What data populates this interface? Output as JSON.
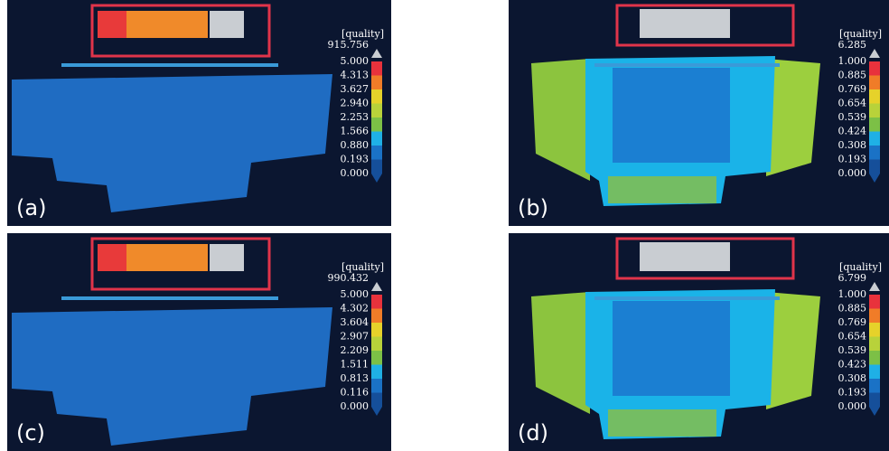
{
  "panels": [
    {
      "label": "(a)",
      "scale_title": "[quality]",
      "max": "915.756",
      "ticks": [
        "5.000",
        "4.313",
        "3.627",
        "2.940",
        "2.253",
        "1.566",
        "0.880",
        "0.193",
        "0.000"
      ]
    },
    {
      "label": "(b)",
      "scale_title": "[quality]",
      "max": "6.285",
      "ticks": [
        "1.000",
        "0.885",
        "0.769",
        "0.654",
        "0.539",
        "0.424",
        "0.308",
        "0.193",
        "0.000"
      ]
    },
    {
      "label": "(c)",
      "scale_title": "[quality]",
      "max": "990.432",
      "ticks": [
        "5.000",
        "4.302",
        "3.604",
        "2.907",
        "2.209",
        "1.511",
        "0.813",
        "0.116",
        "0.000"
      ]
    },
    {
      "label": "(d)",
      "scale_title": "[quality]",
      "max": "6.799",
      "ticks": [
        "1.000",
        "0.885",
        "0.769",
        "0.654",
        "0.539",
        "0.423",
        "0.308",
        "0.193",
        "0.000"
      ]
    }
  ]
}
